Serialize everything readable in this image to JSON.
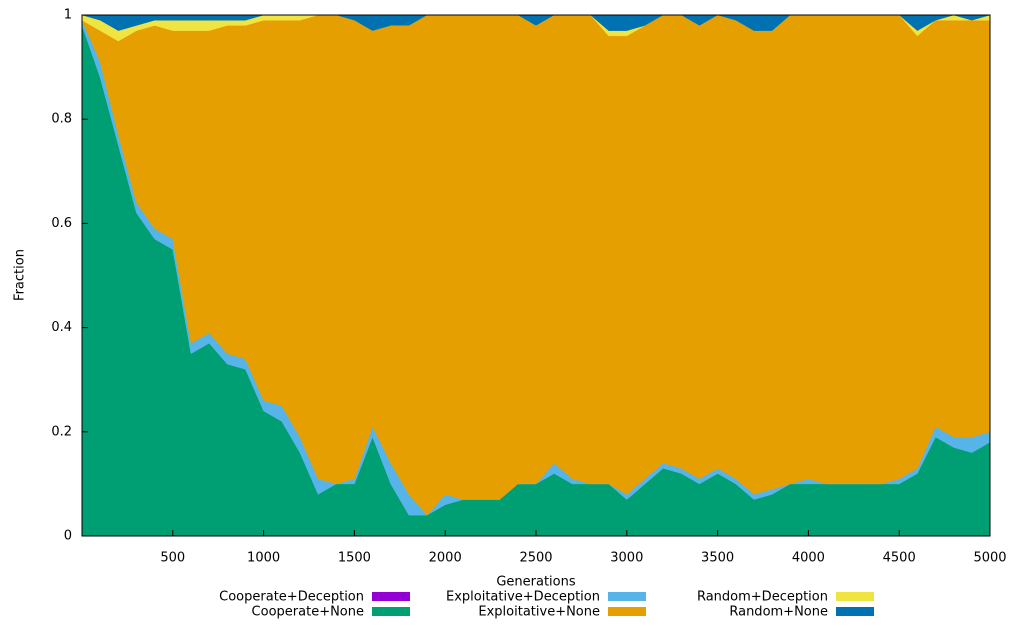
{
  "chart_data": {
    "type": "stacked_area",
    "xlabel": "Generations",
    "ylabel": "Fraction",
    "x": [
      0,
      100,
      200,
      300,
      400,
      500,
      600,
      700,
      800,
      900,
      1000,
      1100,
      1200,
      1300,
      1400,
      1500,
      1600,
      1700,
      1800,
      1900,
      2000,
      2100,
      2200,
      2300,
      2400,
      2500,
      2600,
      2700,
      2800,
      2900,
      3000,
      3100,
      3200,
      3300,
      3400,
      3500,
      3600,
      3700,
      3800,
      3900,
      4000,
      4100,
      4200,
      4300,
      4400,
      4500,
      4600,
      4700,
      4800,
      4900,
      5000
    ],
    "series": [
      {
        "name": "Cooperate+Deception",
        "color": "#9400d3",
        "values": [
          0,
          0,
          0,
          0,
          0,
          0,
          0,
          0,
          0,
          0,
          0,
          0,
          0,
          0,
          0,
          0,
          0,
          0,
          0,
          0,
          0,
          0,
          0,
          0,
          0,
          0,
          0,
          0,
          0,
          0,
          0,
          0,
          0,
          0,
          0,
          0,
          0,
          0,
          0,
          0,
          0,
          0,
          0,
          0,
          0,
          0,
          0,
          0,
          0,
          0,
          0
        ]
      },
      {
        "name": "Cooperate+None",
        "color": "#009e73",
        "values": [
          0.98,
          0.88,
          0.75,
          0.62,
          0.57,
          0.55,
          0.35,
          0.37,
          0.33,
          0.32,
          0.24,
          0.22,
          0.16,
          0.08,
          0.1,
          0.1,
          0.19,
          0.1,
          0.04,
          0.04,
          0.06,
          0.07,
          0.07,
          0.07,
          0.1,
          0.1,
          0.12,
          0.1,
          0.1,
          0.1,
          0.07,
          0.1,
          0.13,
          0.12,
          0.1,
          0.12,
          0.1,
          0.07,
          0.08,
          0.1,
          0.1,
          0.1,
          0.1,
          0.1,
          0.1,
          0.1,
          0.12,
          0.19,
          0.17,
          0.16,
          0.18
        ]
      },
      {
        "name": "Exploitative+Deception",
        "color": "#56b4e9",
        "values": [
          0.01,
          0.03,
          0.02,
          0.02,
          0.02,
          0.02,
          0.02,
          0.02,
          0.02,
          0.02,
          0.02,
          0.03,
          0.03,
          0.03,
          0,
          0.01,
          0.02,
          0.04,
          0.04,
          0,
          0.02,
          0,
          0,
          0,
          0,
          0,
          0.02,
          0.01,
          0,
          0,
          0.01,
          0.01,
          0.01,
          0.01,
          0.01,
          0.01,
          0.01,
          0.01,
          0.01,
          0,
          0.01,
          0,
          0,
          0,
          0,
          0.01,
          0.01,
          0.02,
          0.02,
          0.03,
          0.02
        ]
      },
      {
        "name": "Exploitative+None",
        "color": "#e69f00",
        "values": [
          0,
          0.06,
          0.18,
          0.33,
          0.39,
          0.4,
          0.6,
          0.58,
          0.63,
          0.64,
          0.73,
          0.74,
          0.8,
          0.89,
          0.9,
          0.88,
          0.76,
          0.84,
          0.9,
          0.96,
          0.92,
          0.93,
          0.93,
          0.93,
          0.9,
          0.88,
          0.86,
          0.89,
          0.9,
          0.86,
          0.88,
          0.87,
          0.86,
          0.87,
          0.87,
          0.87,
          0.88,
          0.89,
          0.88,
          0.9,
          0.89,
          0.9,
          0.9,
          0.9,
          0.9,
          0.89,
          0.83,
          0.78,
          0.8,
          0.8,
          0.79
        ]
      },
      {
        "name": "Random+Deception",
        "color": "#f0e442",
        "values": [
          0.01,
          0.02,
          0.02,
          0.01,
          0.01,
          0.02,
          0.02,
          0.02,
          0.01,
          0.01,
          0.01,
          0.01,
          0.01,
          0,
          0,
          0,
          0,
          0,
          0,
          0,
          0,
          0,
          0,
          0,
          0,
          0,
          0,
          0,
          0,
          0.01,
          0.01,
          0,
          0,
          0,
          0,
          0,
          0,
          0,
          0,
          0,
          0,
          0,
          0,
          0,
          0,
          0,
          0.01,
          0,
          0.01,
          0,
          0.01
        ]
      },
      {
        "name": "Random+None",
        "color": "#0072b2",
        "values": [
          0,
          0.01,
          0.03,
          0.02,
          0.01,
          0.01,
          0.01,
          0.01,
          0.01,
          0.01,
          0,
          0,
          0,
          0,
          0,
          0.01,
          0.03,
          0.02,
          0.02,
          0,
          0,
          0,
          0,
          0,
          0,
          0.02,
          0,
          0,
          0,
          0.03,
          0.03,
          0.02,
          0,
          0,
          0.02,
          0,
          0.01,
          0.03,
          0.03,
          0,
          0,
          0,
          0,
          0,
          0,
          0,
          0.03,
          0.01,
          0,
          0.01,
          0
        ]
      }
    ],
    "xlim": [
      0,
      5000
    ],
    "xticks": [
      500,
      1000,
      1500,
      2000,
      2500,
      3000,
      3500,
      4000,
      4500,
      5000
    ],
    "ylim": [
      0,
      1
    ],
    "yticks": [
      0,
      0.2,
      0.4,
      0.6,
      0.8,
      1
    ]
  }
}
